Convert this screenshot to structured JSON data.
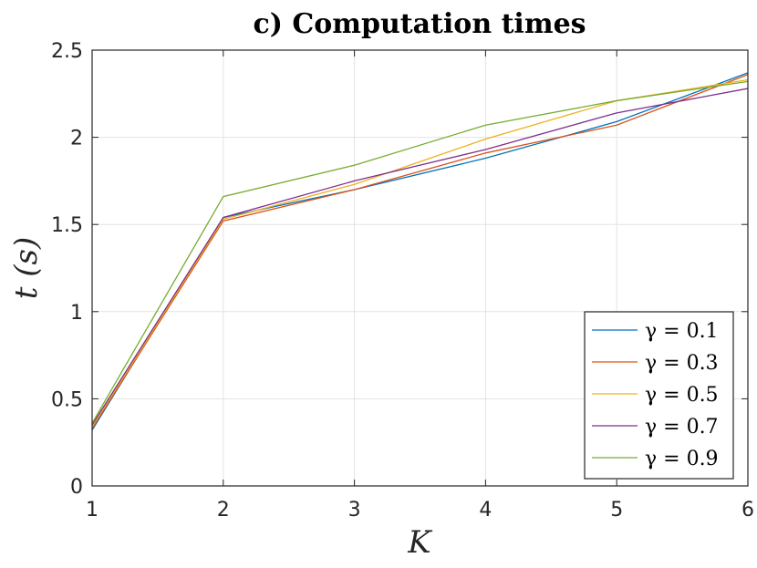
{
  "chart_data": {
    "type": "line",
    "title": "c) Computation times",
    "xlabel": "K",
    "ylabel": "t (s)",
    "xlim": [
      1,
      6
    ],
    "ylim": [
      0,
      2.5
    ],
    "xticks": [
      1,
      2,
      3,
      4,
      5,
      6
    ],
    "yticks": [
      0,
      0.5,
      1,
      1.5,
      2,
      2.5
    ],
    "xtick_labels": [
      "1",
      "2",
      "3",
      "4",
      "5",
      "6"
    ],
    "ytick_labels": [
      "0",
      "0.5",
      "1",
      "1.5",
      "2",
      "2.5"
    ],
    "grid": true,
    "legend_position": "bottom-right",
    "x": [
      1,
      2,
      3,
      4,
      5,
      6
    ],
    "series": [
      {
        "name": "γ = 0.1",
        "color": "#0072BD",
        "values": [
          0.32,
          1.54,
          1.7,
          1.88,
          2.09,
          2.37
        ]
      },
      {
        "name": "γ = 0.3",
        "color": "#D95319",
        "values": [
          0.33,
          1.52,
          1.7,
          1.91,
          2.07,
          2.36
        ]
      },
      {
        "name": "γ = 0.5",
        "color": "#EDB120",
        "values": [
          0.34,
          1.53,
          1.73,
          1.99,
          2.21,
          2.33
        ]
      },
      {
        "name": "γ = 0.7",
        "color": "#7E2F8E",
        "values": [
          0.35,
          1.54,
          1.75,
          1.93,
          2.14,
          2.28
        ]
      },
      {
        "name": "γ = 0.9",
        "color": "#77AC30",
        "values": [
          0.36,
          1.66,
          1.84,
          2.07,
          2.21,
          2.32
        ]
      }
    ]
  }
}
